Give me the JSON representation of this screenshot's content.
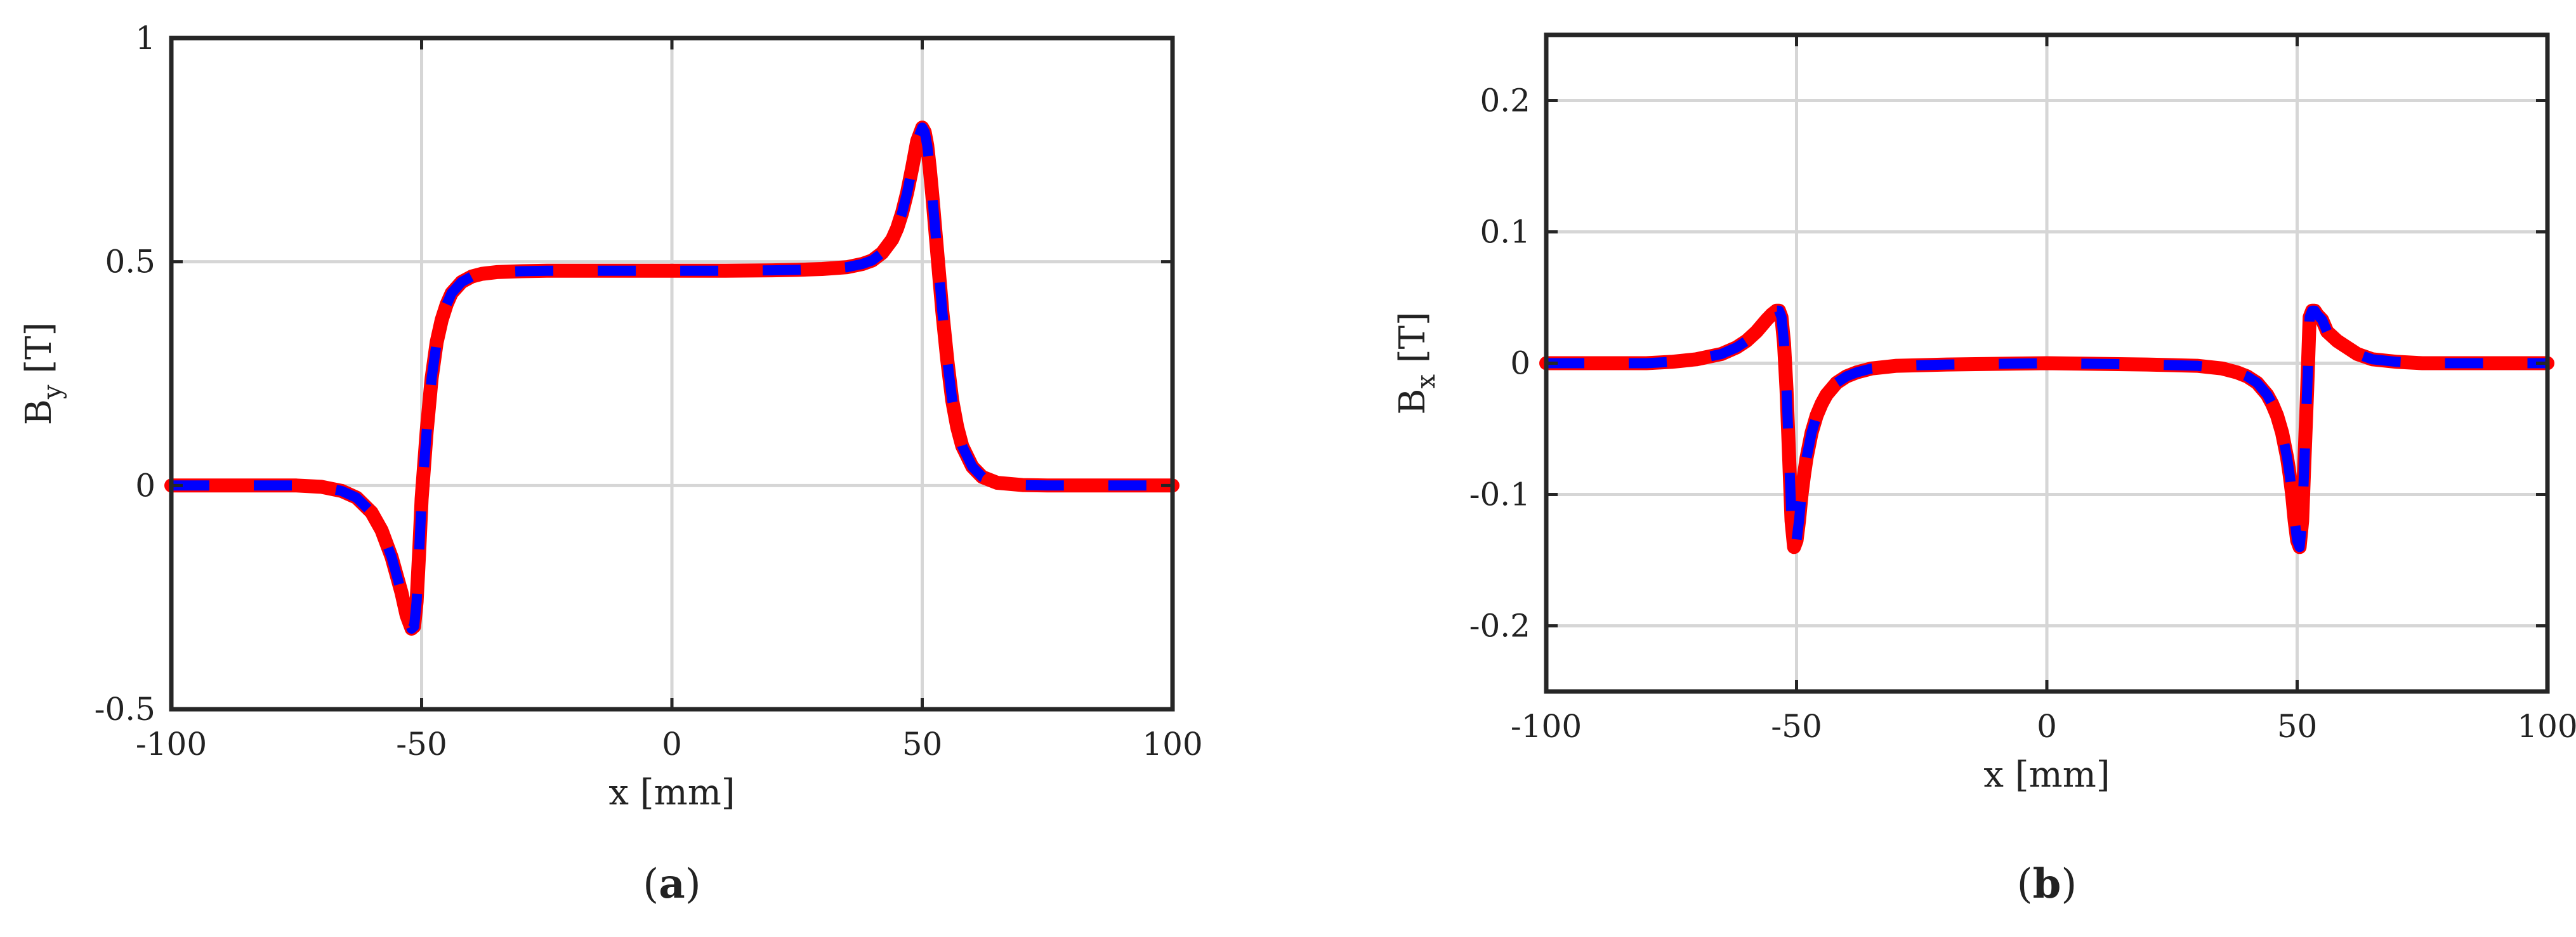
{
  "chart_data": [
    {
      "type": "line",
      "panel_label": "a",
      "xlabel": "x [mm]",
      "ylabel_main": "B",
      "ylabel_sub": "y",
      "ylabel_unit": " [T]",
      "xlim": [
        -100,
        100
      ],
      "ylim": [
        -0.5,
        1
      ],
      "xticks": [
        -100,
        -50,
        0,
        50,
        100
      ],
      "xtick_labels": [
        "-100",
        "-50",
        "0",
        "50",
        "100"
      ],
      "yticks": [
        -0.5,
        0,
        0.5,
        1
      ],
      "ytick_labels": [
        "-0.5",
        "0",
        "0.5",
        "1"
      ],
      "grid": true,
      "colors": {
        "series_a": "#ff0000",
        "series_b": "#0000ff",
        "grid": "#d6d6d6",
        "axes": "#262626"
      },
      "x": [
        -100,
        -90,
        -80,
        -75,
        -70,
        -66,
        -63,
        -60,
        -58,
        -56,
        -54,
        -53,
        -52,
        -51.5,
        -51,
        -50.5,
        -50,
        -49,
        -48,
        -47,
        -46,
        -45,
        -44,
        -42,
        -40,
        -38,
        -35,
        -30,
        -25,
        -20,
        -10,
        0,
        10,
        20,
        25,
        30,
        35,
        38,
        40,
        42,
        44,
        45,
        46,
        47,
        48,
        49,
        50,
        50.5,
        51,
        51.5,
        52,
        53,
        54,
        55,
        56,
        57,
        58,
        60,
        62,
        65,
        70,
        75,
        80,
        90,
        100
      ],
      "y": [
        0,
        0,
        0,
        0,
        -0.003,
        -0.012,
        -0.027,
        -0.06,
        -0.1,
        -0.16,
        -0.24,
        -0.29,
        -0.32,
        -0.315,
        -0.26,
        -0.15,
        -0.03,
        0.12,
        0.24,
        0.32,
        0.37,
        0.405,
        0.43,
        0.455,
        0.467,
        0.473,
        0.477,
        0.479,
        0.48,
        0.48,
        0.48,
        0.48,
        0.48,
        0.481,
        0.482,
        0.484,
        0.488,
        0.495,
        0.503,
        0.52,
        0.55,
        0.575,
        0.61,
        0.655,
        0.71,
        0.77,
        0.8,
        0.79,
        0.76,
        0.71,
        0.65,
        0.52,
        0.39,
        0.28,
        0.19,
        0.13,
        0.088,
        0.042,
        0.019,
        0.006,
        0.001,
        0,
        0,
        0,
        0
      ]
    },
    {
      "type": "line",
      "panel_label": "b",
      "xlabel": "x [mm]",
      "ylabel_main": "B",
      "ylabel_sub": "x",
      "ylabel_unit": " [T]",
      "xlim": [
        -100,
        100
      ],
      "ylim": [
        -0.25,
        0.25
      ],
      "xticks": [
        -100,
        -50,
        0,
        50,
        100
      ],
      "xtick_labels": [
        "-100",
        "-50",
        "0",
        "50",
        "100"
      ],
      "yticks": [
        -0.2,
        -0.1,
        0,
        0.1,
        0.2
      ],
      "ytick_labels": [
        "-0.2",
        "-0.1",
        "0",
        "0.1",
        "0.2"
      ],
      "grid": true,
      "colors": {
        "series_a": "#ff0000",
        "series_b": "#0000ff",
        "grid": "#d6d6d6",
        "axes": "#262626"
      },
      "x": [
        -100,
        -80,
        -75,
        -70,
        -65,
        -62,
        -60,
        -58,
        -56,
        -55,
        -54,
        -53.5,
        -53,
        -52.5,
        -52,
        -51.5,
        -51,
        -50.5,
        -50,
        -49.5,
        -49,
        -48.5,
        -48,
        -47,
        -46,
        -45,
        -44,
        -42,
        -40,
        -38,
        -35,
        -30,
        -20,
        0,
        20,
        30,
        35,
        38,
        40,
        42,
        44,
        45,
        46,
        47,
        48,
        48.5,
        49,
        49.5,
        50,
        50.5,
        51,
        51.5,
        52,
        52.5,
        53,
        53.5,
        54,
        55,
        56,
        58,
        60,
        62,
        65,
        70,
        75,
        80,
        100
      ],
      "y": [
        0,
        0,
        0.001,
        0.003,
        0.007,
        0.012,
        0.017,
        0.024,
        0.033,
        0.037,
        0.04,
        0.04,
        0.035,
        0.015,
        -0.02,
        -0.07,
        -0.12,
        -0.14,
        -0.135,
        -0.12,
        -0.1,
        -0.085,
        -0.072,
        -0.053,
        -0.04,
        -0.031,
        -0.024,
        -0.015,
        -0.01,
        -0.007,
        -0.004,
        -0.002,
        -0.001,
        0,
        -0.001,
        -0.002,
        -0.004,
        -0.007,
        -0.01,
        -0.015,
        -0.024,
        -0.031,
        -0.04,
        -0.053,
        -0.072,
        -0.085,
        -0.1,
        -0.12,
        -0.135,
        -0.14,
        -0.12,
        -0.07,
        -0.02,
        0.035,
        0.04,
        0.04,
        0.037,
        0.033,
        0.024,
        0.017,
        0.012,
        0.007,
        0.003,
        0.001,
        0,
        0,
        0
      ]
    }
  ]
}
